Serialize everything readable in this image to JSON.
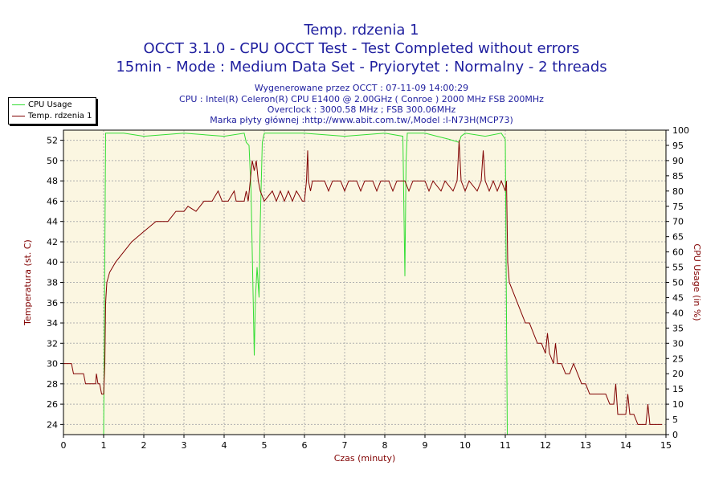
{
  "header": {
    "title": "Temp. rdzenia 1",
    "line2": "OCCT 3.1.0 - CPU OCCT Test - Test Completed without errors",
    "line3": "15min - Mode : Medium Data Set - Pryiorytet : Normalny - 2 threads",
    "generated": "Wygenerowane przez OCCT : 07-11-09 14:00:29",
    "cpu": "CPU : Intel(R) Celeron(R) CPU E1400 @ 2.00GHz ( Conroe ) 2000 MHz FSB 200MHz",
    "overclock": "Overclock : 3000.58 MHz ; FSB 300.06MHz",
    "board": "Marka płyty głównej :http://www.abit.com.tw/,Model :I-N73H(MCP73)"
  },
  "legend": [
    {
      "name": "CPU Usage",
      "color": "#33dd33"
    },
    {
      "name": "Temp. rdzenia 1",
      "color": "#800000"
    }
  ],
  "chart_data": {
    "type": "line",
    "xlabel": "Czas (minuty)",
    "ylabel_left": "Temperatura (st. C)",
    "ylabel_right": "CPU Usage (in %)",
    "xlim": [
      0,
      15
    ],
    "ylim_left": [
      23,
      53
    ],
    "ylim_right": [
      0,
      100
    ],
    "x_ticks": [
      "0",
      "1",
      "2",
      "3",
      "4",
      "5",
      "6",
      "7",
      "8",
      "9",
      "10",
      "11",
      "12",
      "13",
      "14",
      "15"
    ],
    "y_left_ticks": [
      "24",
      "26",
      "28",
      "30",
      "32",
      "34",
      "36",
      "38",
      "40",
      "42",
      "44",
      "46",
      "48",
      "50",
      "52"
    ],
    "y_right_ticks": [
      "0",
      "5",
      "10",
      "15",
      "20",
      "25",
      "30",
      "35",
      "40",
      "45",
      "50",
      "55",
      "60",
      "65",
      "70",
      "75",
      "80",
      "85",
      "90",
      "95",
      "100"
    ],
    "grid": true,
    "series": [
      {
        "name": "CPU Usage",
        "color": "#33dd33",
        "axis": "right",
        "points": [
          [
            1.0,
            0
          ],
          [
            1.02,
            40
          ],
          [
            1.05,
            99
          ],
          [
            1.5,
            99
          ],
          [
            2.0,
            98
          ],
          [
            3.0,
            99
          ],
          [
            4.0,
            98
          ],
          [
            4.5,
            99
          ],
          [
            4.55,
            96
          ],
          [
            4.62,
            95
          ],
          [
            4.67,
            80
          ],
          [
            4.7,
            60
          ],
          [
            4.73,
            40
          ],
          [
            4.75,
            26
          ],
          [
            4.78,
            45
          ],
          [
            4.82,
            55
          ],
          [
            4.87,
            45
          ],
          [
            4.9,
            70
          ],
          [
            4.95,
            96
          ],
          [
            5.0,
            99
          ],
          [
            6.0,
            99
          ],
          [
            7.0,
            98
          ],
          [
            8.0,
            99
          ],
          [
            8.45,
            98
          ],
          [
            8.48,
            70
          ],
          [
            8.5,
            52
          ],
          [
            8.53,
            90
          ],
          [
            8.56,
            99
          ],
          [
            9.0,
            99
          ],
          [
            9.3,
            98
          ],
          [
            9.6,
            97
          ],
          [
            9.85,
            96
          ],
          [
            9.9,
            98
          ],
          [
            10.0,
            99
          ],
          [
            10.5,
            98
          ],
          [
            10.9,
            99
          ],
          [
            11.0,
            97
          ],
          [
            11.05,
            0
          ]
        ]
      },
      {
        "name": "Temp. rdzenia 1",
        "color": "#800000",
        "axis": "left",
        "points": [
          [
            0.0,
            30
          ],
          [
            0.2,
            30
          ],
          [
            0.25,
            29
          ],
          [
            0.5,
            29
          ],
          [
            0.55,
            28
          ],
          [
            0.8,
            28
          ],
          [
            0.82,
            29
          ],
          [
            0.86,
            28
          ],
          [
            0.9,
            28
          ],
          [
            0.95,
            27
          ],
          [
            1.0,
            27
          ],
          [
            1.03,
            30
          ],
          [
            1.05,
            36
          ],
          [
            1.08,
            38
          ],
          [
            1.15,
            39
          ],
          [
            1.3,
            40
          ],
          [
            1.5,
            41
          ],
          [
            1.7,
            42
          ],
          [
            2.0,
            43
          ],
          [
            2.3,
            44
          ],
          [
            2.6,
            44
          ],
          [
            2.8,
            45
          ],
          [
            3.0,
            45
          ],
          [
            3.1,
            45.5
          ],
          [
            3.3,
            45
          ],
          [
            3.5,
            46
          ],
          [
            3.7,
            46
          ],
          [
            3.85,
            47
          ],
          [
            3.95,
            46
          ],
          [
            4.0,
            46
          ],
          [
            4.1,
            46
          ],
          [
            4.25,
            47
          ],
          [
            4.3,
            46
          ],
          [
            4.5,
            46
          ],
          [
            4.55,
            47
          ],
          [
            4.6,
            46
          ],
          [
            4.65,
            48
          ],
          [
            4.7,
            50
          ],
          [
            4.75,
            49
          ],
          [
            4.8,
            50
          ],
          [
            4.85,
            48
          ],
          [
            4.9,
            47
          ],
          [
            5.0,
            46
          ],
          [
            5.2,
            47
          ],
          [
            5.3,
            46
          ],
          [
            5.4,
            47
          ],
          [
            5.5,
            46
          ],
          [
            5.6,
            47
          ],
          [
            5.7,
            46
          ],
          [
            5.8,
            47
          ],
          [
            5.95,
            46
          ],
          [
            6.0,
            46
          ],
          [
            6.05,
            48
          ],
          [
            6.08,
            51
          ],
          [
            6.1,
            48
          ],
          [
            6.15,
            47
          ],
          [
            6.2,
            48
          ],
          [
            6.5,
            48
          ],
          [
            6.6,
            47
          ],
          [
            6.7,
            48
          ],
          [
            6.9,
            48
          ],
          [
            7.0,
            47
          ],
          [
            7.1,
            48
          ],
          [
            7.3,
            48
          ],
          [
            7.4,
            47
          ],
          [
            7.5,
            48
          ],
          [
            7.7,
            48
          ],
          [
            7.8,
            47
          ],
          [
            7.9,
            48
          ],
          [
            8.1,
            48
          ],
          [
            8.2,
            47
          ],
          [
            8.3,
            48
          ],
          [
            8.5,
            48
          ],
          [
            8.6,
            47
          ],
          [
            8.7,
            48
          ],
          [
            9.0,
            48
          ],
          [
            9.1,
            47
          ],
          [
            9.2,
            48
          ],
          [
            9.4,
            47
          ],
          [
            9.5,
            48
          ],
          [
            9.7,
            47
          ],
          [
            9.8,
            48
          ],
          [
            9.85,
            52
          ],
          [
            9.9,
            48
          ],
          [
            10.0,
            47
          ],
          [
            10.1,
            48
          ],
          [
            10.3,
            47
          ],
          [
            10.4,
            48
          ],
          [
            10.45,
            51
          ],
          [
            10.5,
            48
          ],
          [
            10.6,
            47
          ],
          [
            10.7,
            48
          ],
          [
            10.8,
            47
          ],
          [
            10.9,
            48
          ],
          [
            11.0,
            47
          ],
          [
            11.03,
            48
          ],
          [
            11.06,
            40
          ],
          [
            11.1,
            38
          ],
          [
            11.2,
            37
          ],
          [
            11.3,
            36
          ],
          [
            11.4,
            35
          ],
          [
            11.5,
            34
          ],
          [
            11.6,
            34
          ],
          [
            11.7,
            33
          ],
          [
            11.8,
            32
          ],
          [
            11.9,
            32
          ],
          [
            12.0,
            31
          ],
          [
            12.05,
            33
          ],
          [
            12.1,
            31
          ],
          [
            12.2,
            30
          ],
          [
            12.25,
            32
          ],
          [
            12.3,
            30
          ],
          [
            12.4,
            30
          ],
          [
            12.5,
            29
          ],
          [
            12.6,
            29
          ],
          [
            12.7,
            30
          ],
          [
            12.8,
            29
          ],
          [
            12.9,
            28
          ],
          [
            13.0,
            28
          ],
          [
            13.1,
            27
          ],
          [
            13.3,
            27
          ],
          [
            13.5,
            27
          ],
          [
            13.6,
            26
          ],
          [
            13.7,
            26
          ],
          [
            13.75,
            28
          ],
          [
            13.8,
            25
          ],
          [
            13.9,
            25
          ],
          [
            14.0,
            25
          ],
          [
            14.05,
            27
          ],
          [
            14.1,
            25
          ],
          [
            14.2,
            25
          ],
          [
            14.3,
            24
          ],
          [
            14.4,
            24
          ],
          [
            14.5,
            24
          ],
          [
            14.55,
            26
          ],
          [
            14.6,
            24
          ],
          [
            14.8,
            24
          ],
          [
            14.9,
            24
          ]
        ]
      }
    ]
  }
}
